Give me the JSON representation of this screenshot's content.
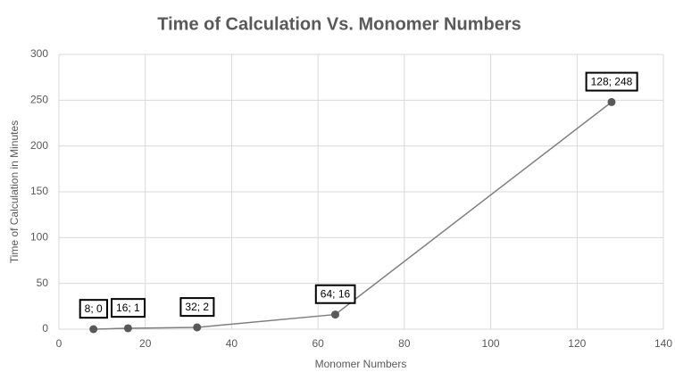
{
  "chart_data": {
    "type": "line",
    "title": "Time of Calculation Vs. Monomer Numbers",
    "x_label": "Monomer Numbers",
    "y_label": "Time of Calculation in Minutes",
    "x": [
      8,
      16,
      32,
      64,
      128
    ],
    "series": [
      {
        "color": "#7f7f7f",
        "values": [
          0,
          1,
          2,
          16,
          248
        ],
        "value_labels": [
          "8; 0",
          "16; 1",
          "32; 2",
          "64; 16",
          "128; 248"
        ]
      }
    ],
    "xlim": [
      0,
      140
    ],
    "xticks": [
      0,
      20,
      40,
      60,
      80,
      100,
      120,
      140
    ],
    "ylim": [
      0,
      300
    ],
    "yticks": [
      0,
      50,
      100,
      150,
      200,
      250,
      300
    ],
    "grid": true
  }
}
